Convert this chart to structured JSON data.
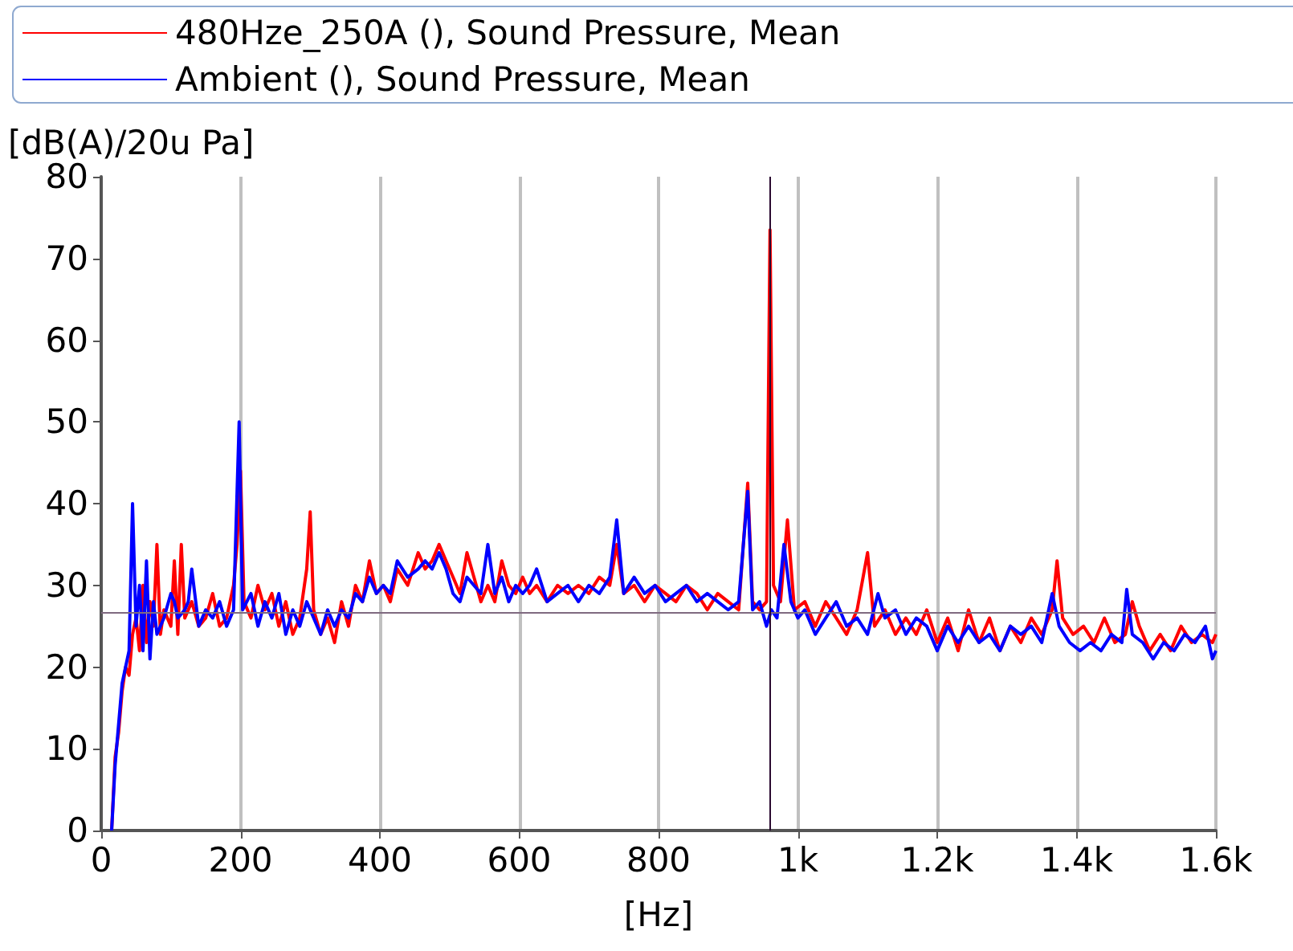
{
  "chart_data": {
    "type": "line",
    "xlabel": "[Hz]",
    "ylabel": "[dB(A)/20u Pa]",
    "xlim": [
      0,
      1600
    ],
    "xticks": [
      0,
      200,
      400,
      600,
      800,
      {
        "value": 1000,
        "label": "1k"
      },
      {
        "value": 1200,
        "label": "1.2k"
      },
      {
        "value": 1400,
        "label": "1.4k"
      },
      {
        "value": 1600,
        "label": "1.6k"
      }
    ],
    "ylim": [
      0,
      80
    ],
    "yticks": [
      0,
      10,
      20,
      30,
      40,
      50,
      60,
      70,
      80
    ],
    "grid": "x",
    "legend": "top",
    "line_style": "solid",
    "ref_lines": [
      {
        "axis": "y",
        "value": 26.7,
        "color": "#7f6a80"
      },
      {
        "axis": "x",
        "value": 960,
        "color": "#2a0a30"
      }
    ],
    "series": [
      {
        "name": "480Hze_250A (), Sound Pressure, Mean",
        "color": "#ff0000",
        "x": [
          15,
          20,
          25,
          30,
          35,
          40,
          45,
          50,
          55,
          60,
          65,
          70,
          75,
          80,
          85,
          90,
          100,
          105,
          110,
          115,
          120,
          130,
          140,
          150,
          160,
          170,
          180,
          190,
          195,
          200,
          205,
          215,
          225,
          235,
          245,
          255,
          265,
          275,
          285,
          295,
          300,
          305,
          315,
          325,
          335,
          345,
          355,
          365,
          375,
          385,
          395,
          405,
          415,
          425,
          440,
          455,
          465,
          475,
          485,
          495,
          505,
          515,
          525,
          535,
          545,
          555,
          565,
          575,
          585,
          595,
          605,
          615,
          625,
          640,
          655,
          670,
          685,
          700,
          715,
          730,
          740,
          750,
          765,
          780,
          795,
          810,
          825,
          840,
          855,
          870,
          885,
          900,
          915,
          928,
          935,
          945,
          955,
          960,
          965,
          975,
          985,
          995,
          1010,
          1025,
          1040,
          1055,
          1070,
          1085,
          1100,
          1110,
          1125,
          1140,
          1155,
          1170,
          1185,
          1200,
          1215,
          1230,
          1245,
          1260,
          1275,
          1290,
          1305,
          1320,
          1335,
          1350,
          1365,
          1372,
          1380,
          1395,
          1410,
          1425,
          1440,
          1455,
          1470,
          1480,
          1490,
          1505,
          1520,
          1535,
          1550,
          1565,
          1580,
          1595,
          1600
        ],
        "values": [
          0,
          9,
          12,
          17,
          20,
          19,
          24,
          26,
          22,
          30,
          23,
          28,
          25,
          35,
          24,
          27,
          25,
          33,
          24,
          35,
          26,
          28,
          25,
          26,
          29,
          25,
          26,
          30,
          35,
          44,
          28,
          26,
          30,
          27,
          29,
          25,
          28,
          24,
          26,
          32,
          39,
          27,
          24,
          26,
          23,
          28,
          25,
          30,
          28,
          33,
          29,
          30,
          28,
          32,
          30,
          34,
          32,
          33,
          35,
          33,
          31,
          29,
          34,
          31,
          28,
          30,
          28,
          33,
          30,
          29,
          31,
          29,
          30,
          28,
          30,
          29,
          30,
          29,
          31,
          30,
          35,
          29,
          30,
          28,
          30,
          29,
          28,
          30,
          29,
          27,
          29,
          28,
          27,
          42.5,
          28,
          27,
          28,
          73.5,
          30,
          28,
          38,
          27,
          28,
          25,
          28,
          26,
          24,
          27,
          34,
          25,
          27,
          24,
          26,
          24,
          27,
          23,
          26,
          22,
          27,
          23,
          26,
          22,
          25,
          23,
          26,
          24,
          27,
          33,
          26,
          24,
          25,
          23,
          26,
          23,
          24,
          28,
          25,
          22,
          24,
          22,
          25,
          23,
          24,
          23,
          24
        ]
      },
      {
        "name": "Ambient (), Sound Pressure, Mean",
        "color": "#0000ff",
        "x": [
          15,
          20,
          25,
          30,
          35,
          40,
          45,
          50,
          55,
          60,
          65,
          70,
          75,
          80,
          90,
          100,
          105,
          110,
          120,
          125,
          130,
          140,
          150,
          160,
          170,
          180,
          190,
          198,
          203,
          215,
          225,
          235,
          245,
          255,
          265,
          275,
          285,
          295,
          305,
          315,
          325,
          335,
          345,
          355,
          365,
          375,
          385,
          395,
          405,
          415,
          425,
          440,
          455,
          465,
          475,
          485,
          495,
          505,
          515,
          525,
          535,
          545,
          555,
          565,
          575,
          585,
          595,
          605,
          615,
          625,
          640,
          655,
          670,
          685,
          700,
          715,
          730,
          740,
          750,
          765,
          780,
          795,
          810,
          825,
          840,
          855,
          870,
          885,
          900,
          915,
          928,
          935,
          945,
          955,
          962,
          970,
          980,
          990,
          1000,
          1010,
          1025,
          1040,
          1055,
          1070,
          1085,
          1100,
          1115,
          1125,
          1140,
          1155,
          1170,
          1185,
          1200,
          1215,
          1230,
          1245,
          1260,
          1275,
          1290,
          1305,
          1320,
          1335,
          1350,
          1365,
          1375,
          1390,
          1405,
          1420,
          1435,
          1450,
          1465,
          1472,
          1480,
          1495,
          1510,
          1525,
          1540,
          1555,
          1570,
          1585,
          1595,
          1600
        ],
        "values": [
          0,
          8,
          13,
          18,
          20,
          22,
          40,
          25,
          30,
          22,
          33,
          21,
          28,
          24,
          26,
          29,
          28,
          26,
          27,
          28,
          32,
          25,
          27,
          26,
          28,
          25,
          27,
          50,
          27,
          29,
          25,
          28,
          26,
          29,
          24,
          27,
          25,
          28,
          26,
          24,
          27,
          25,
          27,
          26,
          29,
          28,
          31,
          29,
          30,
          29,
          33,
          31,
          32,
          33,
          32,
          34,
          32,
          29,
          28,
          31,
          30,
          29,
          35,
          29,
          31,
          28,
          30,
          29,
          30,
          32,
          28,
          29,
          30,
          28,
          30,
          29,
          31,
          38,
          29,
          31,
          29,
          30,
          28,
          29,
          30,
          28,
          29,
          28,
          27,
          28,
          41.5,
          27,
          28,
          25,
          27,
          26,
          35,
          28,
          26,
          27,
          24,
          26,
          28,
          25,
          26,
          24,
          29,
          26,
          27,
          24,
          26,
          25,
          22,
          25,
          23,
          25,
          23,
          24,
          22,
          25,
          24,
          25,
          23,
          29,
          25,
          23,
          22,
          23,
          22,
          24,
          23,
          29.5,
          24,
          23,
          21,
          23,
          22,
          24,
          23,
          25,
          21,
          22
        ]
      }
    ]
  }
}
